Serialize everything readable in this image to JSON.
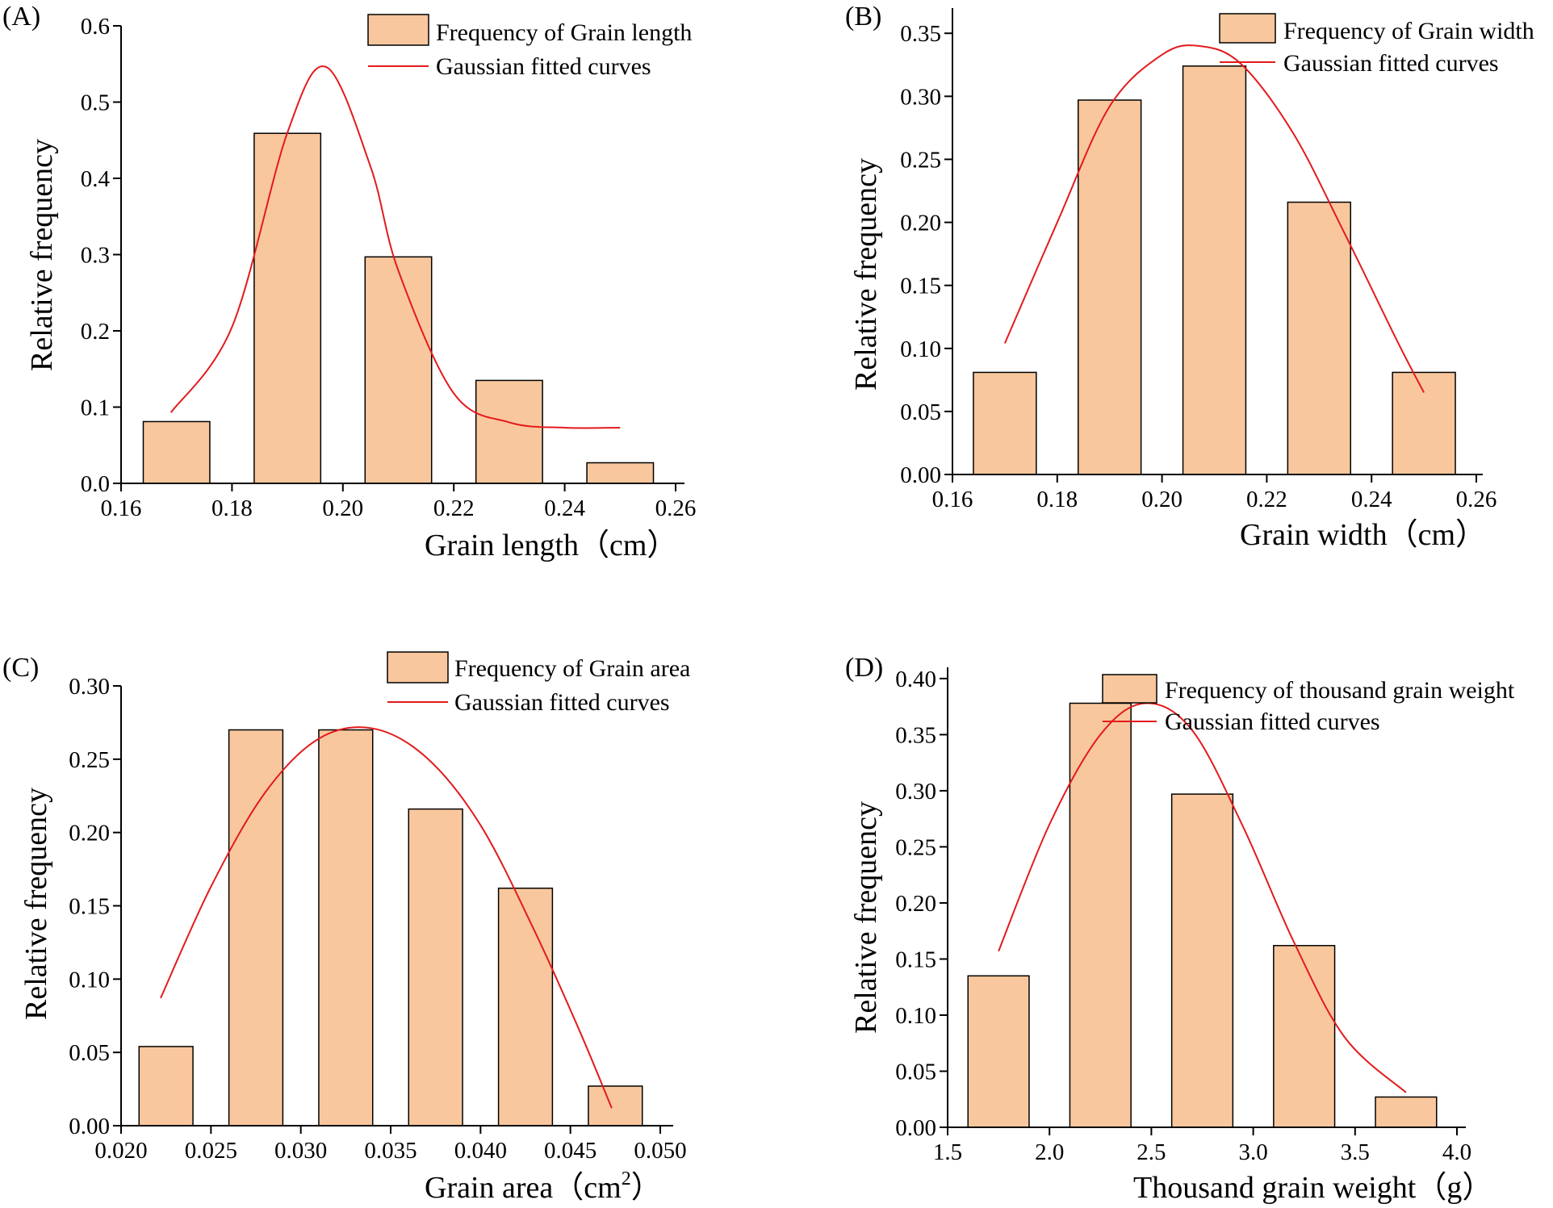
{
  "colors": {
    "bar_fill": "#f9c79d",
    "bar_stroke": "#000000",
    "curve": "#e31a1c",
    "axis": "#000000"
  },
  "chart_data": [
    {
      "type": "bar",
      "panel": "(A)",
      "xlabel": "Grain length（cm）",
      "ylabel": "Relative frequency",
      "xlim": [
        0.16,
        0.26
      ],
      "ylim": [
        0,
        0.6
      ],
      "xticks": [
        "0.16",
        "0.18",
        "0.20",
        "0.22",
        "0.24",
        "0.26"
      ],
      "yticks": [
        "0.0",
        "0.1",
        "0.2",
        "0.3",
        "0.4",
        "0.5",
        "0.6"
      ],
      "bin_edges": [
        0.16,
        0.18,
        0.2,
        0.22,
        0.24,
        0.26
      ],
      "values": [
        0.081,
        0.459,
        0.297,
        0.135,
        0.027
      ],
      "bar_gap": 0.004,
      "curve": {
        "x": [
          0.169,
          0.18,
          0.19,
          0.197,
          0.205,
          0.21,
          0.22,
          0.23,
          0.24,
          0.25
        ],
        "y": [
          0.093,
          0.205,
          0.46,
          0.546,
          0.415,
          0.279,
          0.118,
          0.08,
          0.073,
          0.073
        ]
      },
      "legend": [
        "Frequency of Grain length",
        "Gaussian fitted curves"
      ],
      "legend_position": "top-right"
    },
    {
      "type": "bar",
      "panel": "(B)",
      "xlabel": "Grain width（cm）",
      "ylabel": "Relative frequency",
      "xlim": [
        0.16,
        0.26
      ],
      "ylim": [
        0,
        0.37
      ],
      "xticks": [
        "0.16",
        "0.18",
        "0.20",
        "0.22",
        "0.24",
        "0.26"
      ],
      "yticks": [
        "0.00",
        "0.05",
        "0.10",
        "0.15",
        "0.20",
        "0.25",
        "0.30",
        "0.35"
      ],
      "bin_edges": [
        0.16,
        0.18,
        0.2,
        0.22,
        0.24,
        0.26
      ],
      "values": [
        0.081,
        0.297,
        0.324,
        0.216,
        0.081
      ],
      "bar_gap": 0.004,
      "curve": {
        "x": [
          0.17,
          0.18,
          0.19,
          0.2,
          0.207,
          0.215,
          0.225,
          0.235,
          0.245,
          0.25
        ],
        "y": [
          0.104,
          0.2,
          0.292,
          0.333,
          0.34,
          0.326,
          0.271,
          0.19,
          0.105,
          0.065
        ]
      },
      "legend": [
        "Frequency of Grain width",
        "Gaussian fitted curves"
      ],
      "legend_position": "top-right"
    },
    {
      "type": "bar",
      "panel": "(C)",
      "xlabel": "Grain area（cm",
      "xlabel_sup": "2",
      "xlabel_end": "）",
      "ylabel": "Relative frequency",
      "xlim": [
        0.02,
        0.05
      ],
      "ylim": [
        0,
        0.3
      ],
      "xticks": [
        "0.020",
        "0.025",
        "0.030",
        "0.035",
        "0.040",
        "0.045",
        "0.050"
      ],
      "yticks": [
        "0.00",
        "0.05",
        "0.10",
        "0.15",
        "0.20",
        "0.25",
        "0.30"
      ],
      "bin_edges": [
        0.02,
        0.025,
        0.03,
        0.035,
        0.04,
        0.045,
        0.05
      ],
      "values": [
        0.054,
        0.27,
        0.27,
        0.216,
        0.162,
        0.027
      ],
      "bar_gap": 0.001,
      "curve": {
        "x": [
          0.0222,
          0.025,
          0.028,
          0.031,
          0.034,
          0.037,
          0.04,
          0.043,
          0.0455,
          0.0473
        ],
        "y": [
          0.087,
          0.163,
          0.227,
          0.264,
          0.271,
          0.251,
          0.205,
          0.133,
          0.065,
          0.012
        ]
      },
      "legend": [
        "Frequency of Grain area",
        "Gaussian fitted curves"
      ],
      "legend_position": "top-right"
    },
    {
      "type": "bar",
      "panel": "(D)",
      "xlabel": "Thousand grain weight（g）",
      "ylabel": "Relative frequency",
      "xlim": [
        1.5,
        4.0
      ],
      "ylim": [
        0,
        0.41
      ],
      "xticks": [
        "1.5",
        "2.0",
        "2.5",
        "3.0",
        "3.5",
        "4.0"
      ],
      "yticks": [
        "0.00",
        "0.05",
        "0.10",
        "0.15",
        "0.20",
        "0.25",
        "0.30",
        "0.35",
        "0.40"
      ],
      "bin_edges": [
        1.5,
        2.0,
        2.5,
        3.0,
        3.5,
        4.0
      ],
      "values": [
        0.135,
        0.378,
        0.297,
        0.162,
        0.027
      ],
      "bar_gap": 0.1,
      "curve": {
        "x": [
          1.75,
          2.0,
          2.25,
          2.47,
          2.7,
          2.95,
          3.2,
          3.45,
          3.75
        ],
        "y": [
          0.157,
          0.27,
          0.35,
          0.378,
          0.354,
          0.268,
          0.165,
          0.08,
          0.031
        ]
      },
      "legend": [
        "Frequency of thousand grain weight",
        "Gaussian fitted curves"
      ],
      "legend_position": "top-right"
    }
  ]
}
